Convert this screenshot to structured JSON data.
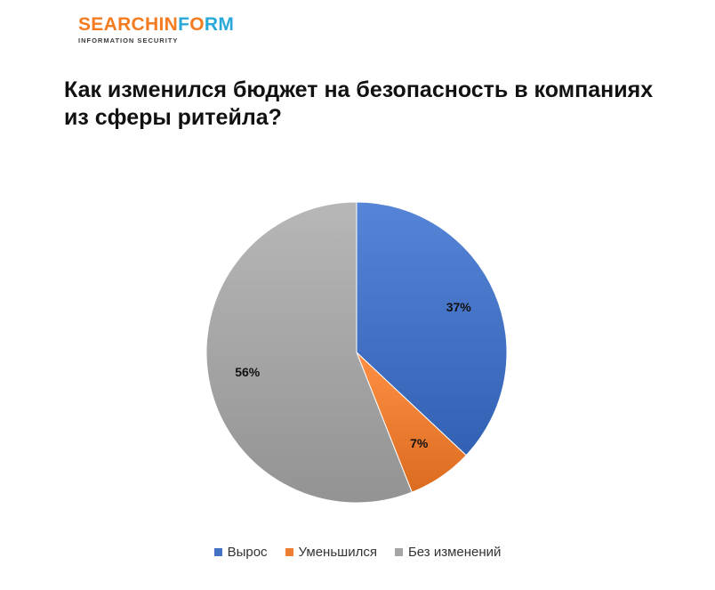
{
  "logo": {
    "part1": "SEARCHIN",
    "part2": "F",
    "part3": "O",
    "part4": "RM",
    "subtitle": "INFORMATION SECURITY",
    "colors": {
      "orange": "#f47b20",
      "blue": "#2aa8d8"
    }
  },
  "chart_data": {
    "type": "pie",
    "title": "Как изменился бюджет на безопасность в компаниях из сферы ритейла?",
    "title_lines": [
      "Как изменился бюджет на безопасность в компаниях",
      "из сферы ритейла?"
    ],
    "categories": [
      "Вырос",
      "Уменьшился",
      "Без изменений"
    ],
    "values": [
      37,
      7,
      56
    ],
    "labels": [
      "37%",
      "7%",
      "56%"
    ],
    "colors": [
      "#4472c4",
      "#ed7d31",
      "#a5a5a5"
    ],
    "start_angle": "12 o'clock",
    "direction": "clockwise",
    "legend_position": "bottom"
  }
}
